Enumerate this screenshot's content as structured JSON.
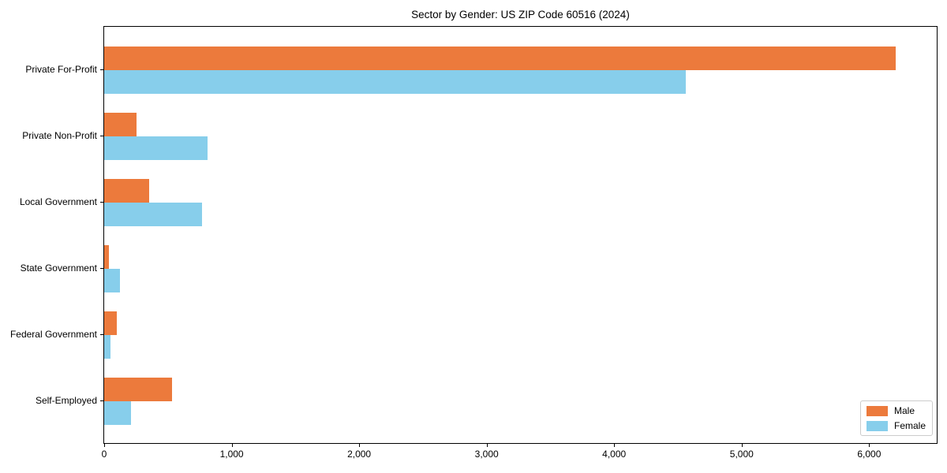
{
  "chart_data": {
    "type": "bar",
    "orientation": "horizontal",
    "title": "Sector by Gender: US ZIP Code 60516 (2024)",
    "xlabel": "",
    "ylabel": "",
    "categories": [
      "Private For-Profit",
      "Private Non-Profit",
      "Local Government",
      "State Government",
      "Federal Government",
      "Self-Employed"
    ],
    "series": [
      {
        "name": "Male",
        "color": "#EC7A3C",
        "values": [
          6210,
          255,
          350,
          35,
          100,
          535
        ]
      },
      {
        "name": "Female",
        "color": "#87CEEB",
        "values": [
          4560,
          810,
          765,
          125,
          47,
          208
        ]
      }
    ],
    "xlim": [
      0,
      6530
    ],
    "xticks": [
      0,
      1000,
      2000,
      3000,
      4000,
      5000,
      6000
    ],
    "xtick_labels": [
      "0",
      "1,000",
      "2,000",
      "3,000",
      "4,000",
      "5,000",
      "6,000"
    ],
    "grid": false,
    "legend": {
      "position": "lower right",
      "entries": [
        "Male",
        "Female"
      ]
    },
    "colors": {
      "background": "#ffffff",
      "spine": "#000000",
      "text": "#000000",
      "legend_border": "#cccccc"
    }
  }
}
